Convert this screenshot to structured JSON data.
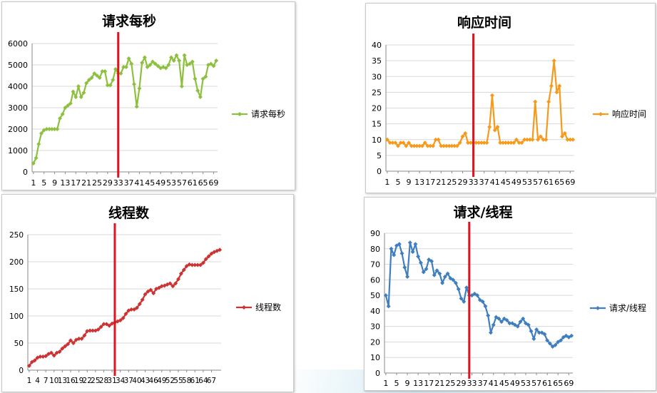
{
  "chart_data": [
    {
      "type": "line",
      "title": "请求每秒",
      "color": "#8dc03e",
      "ylim": [
        0,
        6000
      ],
      "yticks": [
        0,
        1000,
        2000,
        3000,
        4000,
        5000,
        6000
      ],
      "xticks": [
        "1",
        "5",
        "9",
        "13",
        "17",
        "21",
        "25",
        "29",
        "33",
        "37",
        "41",
        "45",
        "49",
        "53",
        "57",
        "61",
        "65",
        "69"
      ],
      "xtick_positions": [
        1,
        5,
        9,
        13,
        17,
        21,
        25,
        29,
        33,
        37,
        41,
        45,
        49,
        53,
        57,
        61,
        65,
        69
      ],
      "marker_at": 33,
      "series": [
        {
          "name": "请求每秒",
          "x": [
            1,
            2,
            3,
            4,
            5,
            6,
            7,
            8,
            9,
            10,
            11,
            12,
            13,
            14,
            15,
            16,
            17,
            18,
            19,
            20,
            21,
            22,
            23,
            24,
            25,
            26,
            27,
            28,
            29,
            30,
            31,
            32,
            33,
            34,
            35,
            36,
            37,
            38,
            39,
            40,
            41,
            42,
            43,
            44,
            45,
            46,
            47,
            48,
            49,
            50,
            51,
            52,
            53,
            54,
            55,
            56,
            57,
            58,
            59,
            60,
            61,
            62,
            63,
            64,
            65,
            66,
            67,
            68,
            69,
            70
          ],
          "values": [
            400,
            650,
            1300,
            1800,
            1950,
            2000,
            2000,
            2000,
            2000,
            2000,
            2500,
            2700,
            3000,
            3100,
            3200,
            3750,
            3500,
            4000,
            3500,
            3700,
            4150,
            4300,
            4400,
            4600,
            4500,
            4400,
            4700,
            4700,
            4050,
            4050,
            4300,
            4800,
            4600,
            4600,
            4900,
            4900,
            5300,
            5050,
            4100,
            3050,
            3900,
            5100,
            5350,
            4900,
            5000,
            5150,
            5050,
            4950,
            4850,
            4900,
            4850,
            5000,
            5350,
            5200,
            5450,
            5200,
            4000,
            5450,
            5000,
            5050,
            5150,
            4350,
            3800,
            3500,
            4350,
            4450,
            5000,
            5050,
            4950,
            5200
          ]
        }
      ]
    },
    {
      "type": "line",
      "title": "响应时间",
      "color": "#f59a1b",
      "ylim": [
        0,
        40
      ],
      "yticks": [
        0,
        5,
        10,
        15,
        20,
        25,
        30,
        35,
        40
      ],
      "xticks": [
        "1",
        "5",
        "9",
        "13",
        "17",
        "21",
        "25",
        "29",
        "33",
        "37",
        "41",
        "45",
        "49",
        "53",
        "57",
        "61",
        "65",
        "69"
      ],
      "xtick_positions": [
        1,
        5,
        9,
        13,
        17,
        21,
        25,
        29,
        33,
        37,
        41,
        45,
        49,
        53,
        57,
        61,
        65,
        69
      ],
      "marker_at": 33,
      "series": [
        {
          "name": "响应时间",
          "x": [
            1,
            2,
            3,
            4,
            5,
            6,
            7,
            8,
            9,
            10,
            11,
            12,
            13,
            14,
            15,
            16,
            17,
            18,
            19,
            20,
            21,
            22,
            23,
            24,
            25,
            26,
            27,
            28,
            29,
            30,
            31,
            32,
            33,
            34,
            35,
            36,
            37,
            38,
            39,
            40,
            41,
            42,
            43,
            44,
            45,
            46,
            47,
            48,
            49,
            50,
            51,
            52,
            53,
            54,
            55,
            56,
            57,
            58,
            59,
            60,
            61,
            62,
            63,
            64,
            65,
            66,
            67,
            68,
            69,
            70
          ],
          "values": [
            10,
            9,
            9,
            9,
            8,
            9,
            9,
            8,
            9,
            8,
            8,
            8,
            8,
            8,
            9,
            8,
            8,
            8,
            10,
            10,
            8,
            8,
            8,
            8,
            8,
            8,
            8,
            9,
            11,
            12,
            9,
            9,
            9,
            9,
            9,
            9,
            9,
            9,
            14,
            24,
            13,
            14,
            9,
            9,
            9,
            9,
            9,
            9,
            10,
            9,
            9,
            10,
            10,
            10,
            10,
            22,
            10,
            11,
            10,
            10,
            22,
            27,
            35,
            25,
            27,
            11,
            12,
            10,
            10,
            10
          ]
        }
      ]
    },
    {
      "type": "line",
      "title": "线程数",
      "color": "#cc3333",
      "ylim": [
        0,
        250
      ],
      "yticks": [
        0,
        50,
        100,
        150,
        200,
        250
      ],
      "xticks": [
        "1",
        "4",
        "7",
        "10",
        "13",
        "16",
        "19",
        "22",
        "25",
        "28",
        "31",
        "34",
        "37",
        "40",
        "43",
        "46",
        "49",
        "52",
        "55",
        "58",
        "61",
        "64",
        "67"
      ],
      "xtick_positions": [
        1,
        4,
        7,
        10,
        13,
        16,
        19,
        22,
        25,
        28,
        31,
        34,
        37,
        40,
        43,
        46,
        49,
        52,
        55,
        58,
        61,
        64,
        67
      ],
      "marker_at": 32,
      "series": [
        {
          "name": "线程数",
          "x": [
            1,
            2,
            3,
            4,
            5,
            6,
            7,
            8,
            9,
            10,
            11,
            12,
            13,
            14,
            15,
            16,
            17,
            18,
            19,
            20,
            21,
            22,
            23,
            24,
            25,
            26,
            27,
            28,
            29,
            30,
            31,
            32,
            33,
            34,
            35,
            36,
            37,
            38,
            39,
            40,
            41,
            42,
            43,
            44,
            45,
            46,
            47,
            48,
            49,
            50,
            51,
            52,
            53,
            54,
            55,
            56,
            57,
            58,
            59,
            60,
            61,
            62,
            63,
            64,
            65,
            66,
            67,
            68,
            69,
            70
          ],
          "values": [
            8,
            15,
            18,
            23,
            25,
            25,
            26,
            30,
            32,
            27,
            32,
            34,
            40,
            44,
            48,
            55,
            50,
            56,
            58,
            58,
            64,
            72,
            73,
            73,
            73,
            75,
            80,
            85,
            85,
            82,
            86,
            88,
            90,
            92,
            96,
            104,
            110,
            112,
            112,
            115,
            122,
            130,
            140,
            145,
            148,
            142,
            150,
            152,
            155,
            156,
            158,
            160,
            155,
            160,
            168,
            178,
            185,
            192,
            195,
            194,
            194,
            194,
            194,
            198,
            205,
            210,
            215,
            218,
            220,
            222
          ]
        }
      ]
    },
    {
      "type": "line",
      "title": "请求/线程",
      "color": "#3f7fbf",
      "ylim": [
        0,
        90
      ],
      "yticks": [
        0,
        10,
        20,
        30,
        40,
        50,
        60,
        70,
        80,
        90
      ],
      "xticks": [
        "1",
        "5",
        "9",
        "13",
        "17",
        "21",
        "25",
        "29",
        "33",
        "37",
        "41",
        "45",
        "49",
        "53",
        "57",
        "61",
        "65",
        "69"
      ],
      "xtick_positions": [
        1,
        5,
        9,
        13,
        17,
        21,
        25,
        29,
        33,
        37,
        41,
        45,
        49,
        53,
        57,
        61,
        65,
        69
      ],
      "marker_at": 32,
      "series": [
        {
          "name": "请求/线程",
          "x": [
            1,
            2,
            3,
            4,
            5,
            6,
            7,
            8,
            9,
            10,
            11,
            12,
            13,
            14,
            15,
            16,
            17,
            18,
            19,
            20,
            21,
            22,
            23,
            24,
            25,
            26,
            27,
            28,
            29,
            30,
            31,
            32,
            33,
            34,
            35,
            36,
            37,
            38,
            39,
            40,
            41,
            42,
            43,
            44,
            45,
            46,
            47,
            48,
            49,
            50,
            51,
            52,
            53,
            54,
            55,
            56,
            57,
            58,
            59,
            60,
            61,
            62,
            63,
            64,
            65,
            66,
            67,
            68,
            69,
            70
          ],
          "values": [
            50,
            43,
            80,
            76,
            82,
            83,
            77,
            68,
            62,
            84,
            78,
            83,
            75,
            71,
            65,
            67,
            73,
            72,
            63,
            66,
            64,
            58,
            62,
            64,
            61,
            60,
            58,
            54,
            48,
            46,
            55,
            50,
            50,
            51,
            50,
            47,
            46,
            43,
            37,
            26,
            31,
            36,
            35,
            33,
            35,
            34,
            32,
            32,
            31,
            30,
            33,
            35,
            32,
            31,
            27,
            22,
            28,
            26,
            26,
            25,
            21,
            19,
            17,
            18,
            20,
            21,
            23,
            24,
            23,
            24
          ]
        }
      ]
    }
  ]
}
